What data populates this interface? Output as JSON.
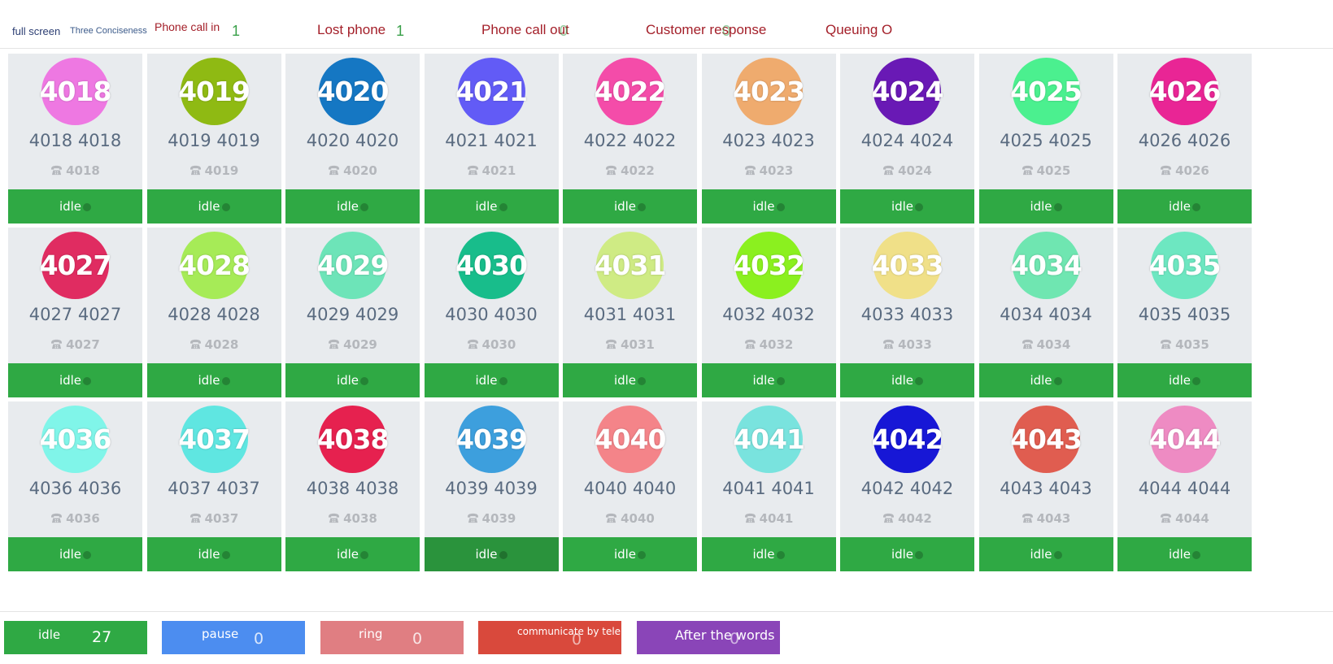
{
  "topbar": {
    "full_screen": "full screen",
    "three_conciseness": "Three Conciseness",
    "stats": [
      {
        "label": "Phone call in",
        "count": "1"
      },
      {
        "label": "Lost phone",
        "count": "1"
      },
      {
        "label": "Phone call out",
        "count": "0"
      },
      {
        "label": "Customer response",
        "count": "0"
      },
      {
        "label": "Queuing O",
        "count": ""
      }
    ]
  },
  "agents": [
    {
      "id": "4018",
      "name": "4018 4018",
      "ext": "4018",
      "color": "#ee78e2",
      "status": "idle"
    },
    {
      "id": "4019",
      "name": "4019 4019",
      "ext": "4019",
      "color": "#8fba13",
      "status": "idle"
    },
    {
      "id": "4020",
      "name": "4020 4020",
      "ext": "4020",
      "color": "#1577c3",
      "status": "idle"
    },
    {
      "id": "4021",
      "name": "4021 4021",
      "ext": "4021",
      "color": "#625bf6",
      "status": "idle"
    },
    {
      "id": "4022",
      "name": "4022 4022",
      "ext": "4022",
      "color": "#f44ca9",
      "status": "idle"
    },
    {
      "id": "4023",
      "name": "4023 4023",
      "ext": "4023",
      "color": "#efab6e",
      "status": "idle"
    },
    {
      "id": "4024",
      "name": "4024 4024",
      "ext": "4024",
      "color": "#6919b5",
      "status": "idle"
    },
    {
      "id": "4025",
      "name": "4025 4025",
      "ext": "4025",
      "color": "#4bf08f",
      "status": "idle"
    },
    {
      "id": "4026",
      "name": "4026 4026",
      "ext": "4026",
      "color": "#e92595",
      "status": "idle"
    },
    {
      "id": "4027",
      "name": "4027 4027",
      "ext": "4027",
      "color": "#e02c61",
      "status": "idle"
    },
    {
      "id": "4028",
      "name": "4028 4028",
      "ext": "4028",
      "color": "#a6eb57",
      "status": "idle"
    },
    {
      "id": "4029",
      "name": "4029 4029",
      "ext": "4029",
      "color": "#6de4b8",
      "status": "idle"
    },
    {
      "id": "4030",
      "name": "4030 4030",
      "ext": "4030",
      "color": "#18bd8b",
      "status": "idle"
    },
    {
      "id": "4031",
      "name": "4031 4031",
      "ext": "4031",
      "color": "#cfeb84",
      "status": "idle"
    },
    {
      "id": "4032",
      "name": "4032 4032",
      "ext": "4032",
      "color": "#8bf01f",
      "status": "idle"
    },
    {
      "id": "4033",
      "name": "4033 4033",
      "ext": "4033",
      "color": "#f0e088",
      "status": "idle"
    },
    {
      "id": "4034",
      "name": "4034 4034",
      "ext": "4034",
      "color": "#6fe6b1",
      "status": "idle"
    },
    {
      "id": "4035",
      "name": "4035 4035",
      "ext": "4035",
      "color": "#6de7c1",
      "status": "idle"
    },
    {
      "id": "4036",
      "name": "4036 4036",
      "ext": "4036",
      "color": "#80f5e9",
      "status": "idle"
    },
    {
      "id": "4037",
      "name": "4037 4037",
      "ext": "4037",
      "color": "#5fe6e1",
      "status": "idle"
    },
    {
      "id": "4038",
      "name": "4038 4038",
      "ext": "4038",
      "color": "#e6214f",
      "status": "idle"
    },
    {
      "id": "4039",
      "name": "4039 4039",
      "ext": "4039",
      "color": "#3d9fdd",
      "status": "idle"
    },
    {
      "id": "4040",
      "name": "4040 4040",
      "ext": "4040",
      "color": "#f48489",
      "status": "idle"
    },
    {
      "id": "4041",
      "name": "4041 4041",
      "ext": "4041",
      "color": "#79e3de",
      "status": "idle"
    },
    {
      "id": "4042",
      "name": "4042 4042",
      "ext": "4042",
      "color": "#1717d6",
      "status": "idle"
    },
    {
      "id": "4043",
      "name": "4043 4043",
      "ext": "4043",
      "color": "#e05d50",
      "status": "idle"
    },
    {
      "id": "4044",
      "name": "4044 4044",
      "ext": "4044",
      "color": "#ee8bc3",
      "status": "idle"
    }
  ],
  "legend": {
    "idle": {
      "label": "idle",
      "count": "27",
      "color": "#2fa944"
    },
    "pause": {
      "label": "pause",
      "count": "0",
      "color": "#4c8df0"
    },
    "ring": {
      "label": "ring",
      "count": "0",
      "color": "#e07e82"
    },
    "communicate": {
      "label": "communicate by telephone",
      "count": "0",
      "color": "#d9493c"
    },
    "after": {
      "label": "After the words",
      "count": "0",
      "color": "#8a45b8"
    }
  }
}
